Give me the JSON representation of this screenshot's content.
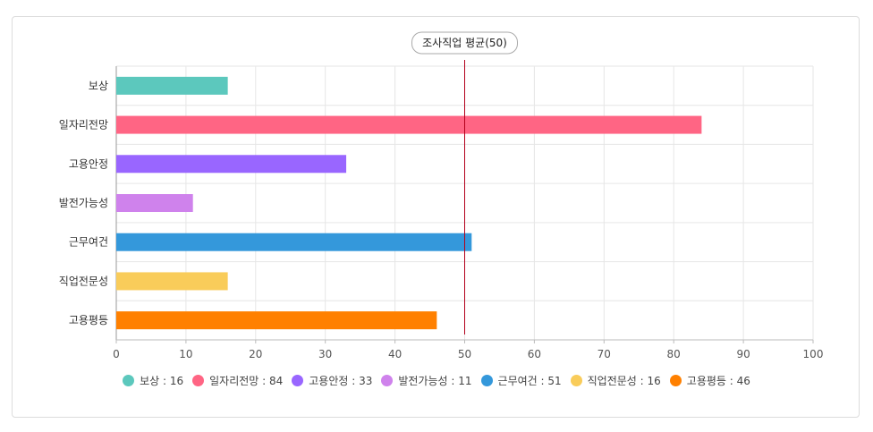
{
  "chart_data": {
    "type": "bar",
    "orientation": "horizontal",
    "categories": [
      "보상",
      "일자리전망",
      "고용안정",
      "발전가능성",
      "근무여건",
      "직업전문성",
      "고용평등"
    ],
    "values": [
      16,
      84,
      33,
      11,
      51,
      16,
      46
    ],
    "colors": [
      "#5CC8BD",
      "#FF6584",
      "#9966FF",
      "#CF82EC",
      "#3498DB",
      "#F9CC5A",
      "#FF8000"
    ],
    "xlim": [
      0,
      100
    ],
    "xticks": [
      0,
      10,
      20,
      30,
      40,
      50,
      60,
      70,
      80,
      90,
      100
    ],
    "grid": true,
    "reference_line": {
      "value": 50,
      "label": "조사직업 평균(50)",
      "color": "#b3001b"
    },
    "legend": {
      "placement": "bottom",
      "items": [
        "보상 : 16",
        "일자리전망 : 84",
        "고용안정 : 33",
        "발전가능성 : 11",
        "근무여건 : 51",
        "직업전문성 : 16",
        "고용평등 : 46"
      ]
    }
  }
}
